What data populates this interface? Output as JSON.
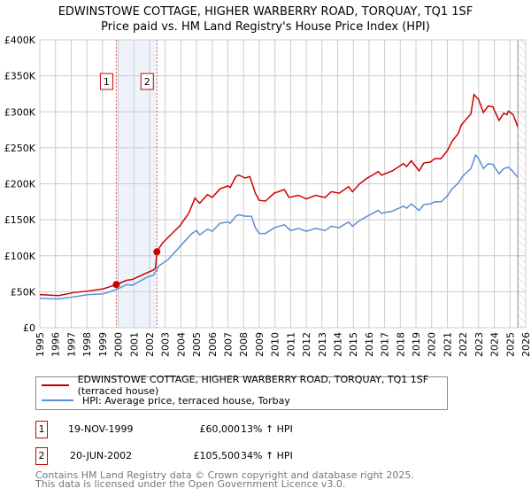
{
  "chart_data": {
    "type": "line",
    "title": "EDWINSTOWE COTTAGE, HIGHER WARBERRY ROAD, TORQUAY, TQ1 1SF",
    "subtitle": "Price paid vs. HM Land Registry's House Price Index (HPI)",
    "xlim": [
      1995,
      2026
    ],
    "ylim": [
      0,
      400000
    ],
    "x_ticks": [
      "1995",
      "1996",
      "1997",
      "1998",
      "1999",
      "2000",
      "2001",
      "2002",
      "2003",
      "2004",
      "2005",
      "2006",
      "2007",
      "2008",
      "2009",
      "2010",
      "2011",
      "2012",
      "2013",
      "2014",
      "2015",
      "2016",
      "2017",
      "2018",
      "2019",
      "2020",
      "2021",
      "2022",
      "2023",
      "2024",
      "2025",
      "2026"
    ],
    "y_ticks": [
      {
        "v": 0,
        "l": "£0"
      },
      {
        "v": 50000,
        "l": "£50K"
      },
      {
        "v": 100000,
        "l": "£100K"
      },
      {
        "v": 150000,
        "l": "£150K"
      },
      {
        "v": 200000,
        "l": "£200K"
      },
      {
        "v": 250000,
        "l": "£250K"
      },
      {
        "v": 300000,
        "l": "£300K"
      },
      {
        "v": 350000,
        "l": "£350K"
      },
      {
        "v": 400000,
        "l": "£400K"
      }
    ],
    "grid": true,
    "shaded_span": [
      1999.88,
      2002.47
    ],
    "forecast_hatch_from": 2025.5,
    "series": [
      {
        "name": "EDWINSTOWE COTTAGE, HIGHER WARBERRY ROAD, TORQUAY, TQ1 1SF (terraced house)",
        "color": "#cc0000",
        "x": [
          1995,
          1996.2,
          1997.2,
          1998.1,
          1999.05,
          1999.88,
          2000.55,
          2000.9,
          2001.5,
          2001.9,
          2002.25,
          2002.38,
          2002.47,
          2002.8,
          2003.3,
          2003.95,
          2004.5,
          2004.9,
          2005.2,
          2005.7,
          2006.0,
          2006.5,
          2007.0,
          2007.15,
          2007.5,
          2007.7,
          2008.1,
          2008.4,
          2008.75,
          2009.0,
          2009.4,
          2009.96,
          2010.6,
          2010.9,
          2011.5,
          2012.0,
          2012.6,
          2013.2,
          2013.6,
          2014.1,
          2014.7,
          2014.95,
          2015.4,
          2015.9,
          2016.6,
          2016.8,
          2017.5,
          2018.2,
          2018.4,
          2018.7,
          2019.2,
          2019.5,
          2019.9,
          2020.2,
          2020.6,
          2021.0,
          2021.3,
          2021.7,
          2021.9,
          2022.5,
          2022.7,
          2023.0,
          2023.3,
          2023.6,
          2023.9,
          2024.3,
          2024.6,
          2024.8,
          2024.9,
          2025.2,
          2025.5
        ],
        "y": [
          46,
          44.6,
          49,
          51,
          54,
          60,
          66,
          67,
          73,
          77,
          80,
          83,
          105.5,
          117,
          128,
          142,
          159,
          180,
          173,
          185,
          181,
          193,
          197,
          195,
          210,
          212,
          208,
          210,
          187,
          177,
          176,
          187,
          192,
          181,
          184,
          179,
          184,
          181,
          189,
          187,
          196,
          189,
          200,
          208,
          217,
          212,
          218,
          228,
          224,
          232,
          218,
          229,
          230,
          235,
          235,
          246,
          259,
          270,
          282,
          297,
          324,
          317,
          299,
          308,
          307,
          288,
          298,
          296,
          301,
          296,
          279
        ]
      },
      {
        "name": "HPI: Average price, terraced house, Torbay",
        "color": "#5b8fd0",
        "x": [
          1995,
          1996.2,
          1997.2,
          1998.1,
          1999.05,
          1999.88,
          2000.55,
          2000.9,
          2001.5,
          2001.9,
          2002.25,
          2002.6,
          2003.2,
          2003.95,
          2004.7,
          2005.0,
          2005.2,
          2005.7,
          2006.0,
          2006.5,
          2007.0,
          2007.15,
          2007.5,
          2007.7,
          2008.1,
          2008.5,
          2008.75,
          2009.0,
          2009.4,
          2009.96,
          2010.6,
          2011.0,
          2011.5,
          2012.0,
          2012.6,
          2013.2,
          2013.6,
          2014.1,
          2014.7,
          2014.95,
          2015.4,
          2015.9,
          2016.6,
          2016.8,
          2017.5,
          2018.2,
          2018.4,
          2018.7,
          2019.2,
          2019.5,
          2019.9,
          2020.2,
          2020.6,
          2021.0,
          2021.3,
          2021.7,
          2022.0,
          2022.5,
          2022.8,
          2023.0,
          2023.3,
          2023.6,
          2023.9,
          2024.3,
          2024.6,
          2024.9,
          2025.1,
          2025.5
        ],
        "y": [
          41,
          40,
          43,
          46,
          47,
          53,
          60,
          59,
          66,
          71,
          73,
          86,
          95,
          113,
          131,
          135,
          129,
          137,
          134,
          145,
          147,
          145,
          155,
          157,
          155,
          155,
          139,
          131,
          131,
          139,
          143,
          135,
          138,
          134,
          138,
          135,
          141,
          139,
          147,
          141,
          149,
          155,
          163,
          159,
          162,
          169,
          166,
          172,
          163,
          171,
          172,
          175,
          175,
          183,
          193,
          201,
          211,
          221,
          240,
          235,
          221,
          228,
          227,
          214,
          221,
          223,
          219,
          209
        ]
      }
    ],
    "y_unit": "thousand GBP",
    "sales": [
      {
        "id": "1",
        "x": 1999.88,
        "y": 60
      },
      {
        "id": "2",
        "x": 2002.47,
        "y": 105.5
      }
    ]
  },
  "legend": {
    "property": "EDWINSTOWE COTTAGE, HIGHER WARBERRY ROAD, TORQUAY, TQ1 1SF (terraced house)",
    "hpi": "HPI: Average price, terraced house, Torbay"
  },
  "transactions": [
    {
      "num": "1",
      "date": "19-NOV-1999",
      "price": "£60,000",
      "hpi": "13% ↑ HPI"
    },
    {
      "num": "2",
      "date": "20-JUN-2002",
      "price": "£105,500",
      "hpi": "34% ↑ HPI"
    }
  ],
  "footer": {
    "line1": "Contains HM Land Registry data © Crown copyright and database right 2025.",
    "line2": "This data is licensed under the Open Government Licence v3.0."
  }
}
